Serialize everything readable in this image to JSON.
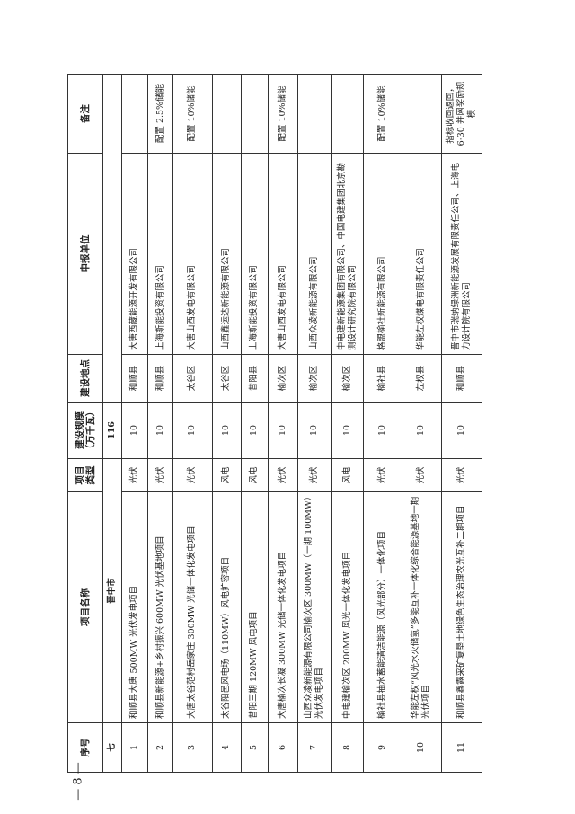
{
  "headers": {
    "no": "序号",
    "name": "项目名称",
    "type": "项目类型",
    "scale": "建设规模（万千瓦）",
    "location": "建设地点",
    "applicant": "申报单位",
    "remark": "备注"
  },
  "section": {
    "no": "七",
    "name": "晋中市",
    "scale": "116"
  },
  "rows": [
    {
      "no": "1",
      "name": "和顺县大唐 500MW 光伏发电项目",
      "type": "光伏",
      "scale": "10",
      "location": "和顺县",
      "applicant": "大唐西藏能源开发有限公司",
      "remark": ""
    },
    {
      "no": "2",
      "name": "和顺县新能源+乡村振兴 600MW 光伏基地项目",
      "type": "光伏",
      "scale": "10",
      "location": "和顺县",
      "applicant": "上海斯能投资有限公司",
      "remark": "配置 2.5%储能"
    },
    {
      "no": "3",
      "name": "大唐太谷范村岳家庄 300MW 光储一体化发电项目",
      "type": "光伏",
      "scale": "10",
      "location": "太谷区",
      "applicant": "大唐山西发电有限公司",
      "remark": "配置 10%储能"
    },
    {
      "no": "4",
      "name": "太谷阳邑风电场（110MW）风电扩容项目",
      "type": "风电",
      "scale": "10",
      "location": "太谷区",
      "applicant": "山西鑫运达新能源有限公司",
      "remark": ""
    },
    {
      "no": "5",
      "name": "昔阳三期 120MW 风电项目",
      "type": "风电",
      "scale": "10",
      "location": "昔阳县",
      "applicant": "上海斯能投资有限公司",
      "remark": ""
    },
    {
      "no": "6",
      "name": "大唐榆次长凝 300MW 光储一体化发电项目",
      "type": "光伏",
      "scale": "10",
      "location": "榆次区",
      "applicant": "大唐山西发电有限公司",
      "remark": "配置 10%储能"
    },
    {
      "no": "7",
      "name": "山西众凌新能源有限公司榆次区 300MW（一期 100MW）光伏发电项目",
      "type": "光伏",
      "scale": "10",
      "location": "榆次区",
      "applicant": "山西众凌新能源有限公司",
      "remark": ""
    },
    {
      "no": "8",
      "name": "中电建榆次区 200MW 风光一体化发电项目",
      "type": "风电",
      "scale": "10",
      "location": "榆次区",
      "applicant": "中电建新能源集团有限公司、中国电建集团北京勘测设计研究院有限公司",
      "remark": ""
    },
    {
      "no": "9",
      "name": "榆社县抽水蓄能清洁能源（风光部分）一体化项目",
      "type": "光伏",
      "scale": "10",
      "location": "榆社县",
      "applicant": "格盟榆社新能源有限公司",
      "remark": "配置 10%储能"
    },
    {
      "no": "10",
      "name": "华能左权“风光水火储氢”多能互补一体化综合能源基地一期光伏项目",
      "type": "光伏",
      "scale": "10",
      "location": "左权县",
      "applicant": "华能左权煤电有限责任公司",
      "remark": ""
    },
    {
      "no": "11",
      "name": "和顺县鑫露采矿复垦土地绿色生态治理农光互补二期项目",
      "type": "光伏",
      "scale": "10",
      "location": "和顺县",
      "applicant": "晋中市瑞纳绿洲新能源发展有限责任公司、上海电力设计院有限公司",
      "remark": "指标收回返回，6·30 并网奖励规模"
    }
  ],
  "page_number": "— 8 —"
}
